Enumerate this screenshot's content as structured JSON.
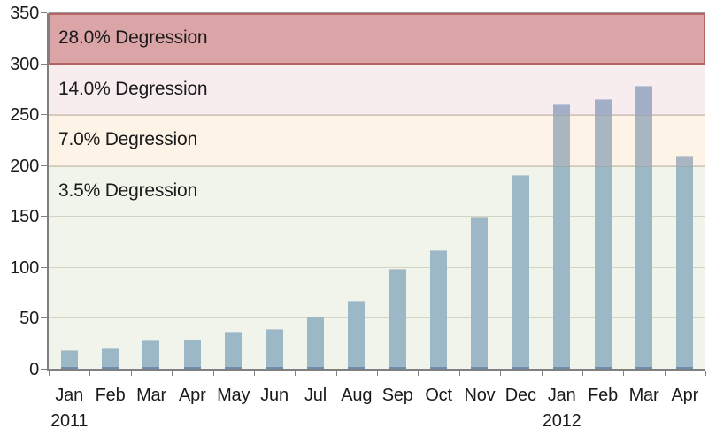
{
  "chart_data": {
    "type": "bar",
    "x": {
      "categories": [
        "Jan",
        "Feb",
        "Mar",
        "Apr",
        "May",
        "Jun",
        "Jul",
        "Aug",
        "Sep",
        "Oct",
        "Nov",
        "Dec",
        "Jan",
        "Feb",
        "Mar",
        "Apr"
      ],
      "year_labels": [
        {
          "index": 0,
          "text": "2011"
        },
        {
          "index": 12,
          "text": "2012"
        }
      ]
    },
    "y": {
      "min": 0,
      "max": 350,
      "tick_step": 50,
      "ticks": [
        0,
        50,
        100,
        150,
        200,
        250,
        300,
        350
      ]
    },
    "values": [
      19,
      21,
      29,
      30,
      37,
      40,
      52,
      68,
      99,
      117,
      150,
      191,
      261,
      266,
      279,
      210
    ],
    "bands": [
      {
        "label": "28.0% Degression",
        "from": 300,
        "to": 350,
        "overlay": "rgba(169,41,45,0.42)",
        "border": "rgba(178,93,93,0.9)",
        "full_border": true
      },
      {
        "label": "14.0% Degression",
        "from": 250,
        "to": 300,
        "overlay": "rgba(236,210,215,0.42)",
        "border": "rgba(160,150,130,0.45)",
        "full_border": false
      },
      {
        "label": "7.0% Degression",
        "from": 200,
        "to": 250,
        "overlay": "rgba(250,226,198,0.42)",
        "border": "rgba(160,150,130,0.45)",
        "full_border": false
      },
      {
        "label": "3.5% Degression",
        "from": 0,
        "to": 200,
        "overlay": "rgba(219,229,207,0.42)",
        "border": "rgba(160,150,130,0.45)",
        "full_border": false
      }
    ],
    "grid": true,
    "legend": "none",
    "colors": {
      "bar": "#6F96BF",
      "bar_base": "#1F4E96",
      "gridline": "#CFC9BD",
      "gridline_top": "#999999",
      "axis": "#808080",
      "text": "#1A1A1A"
    }
  }
}
